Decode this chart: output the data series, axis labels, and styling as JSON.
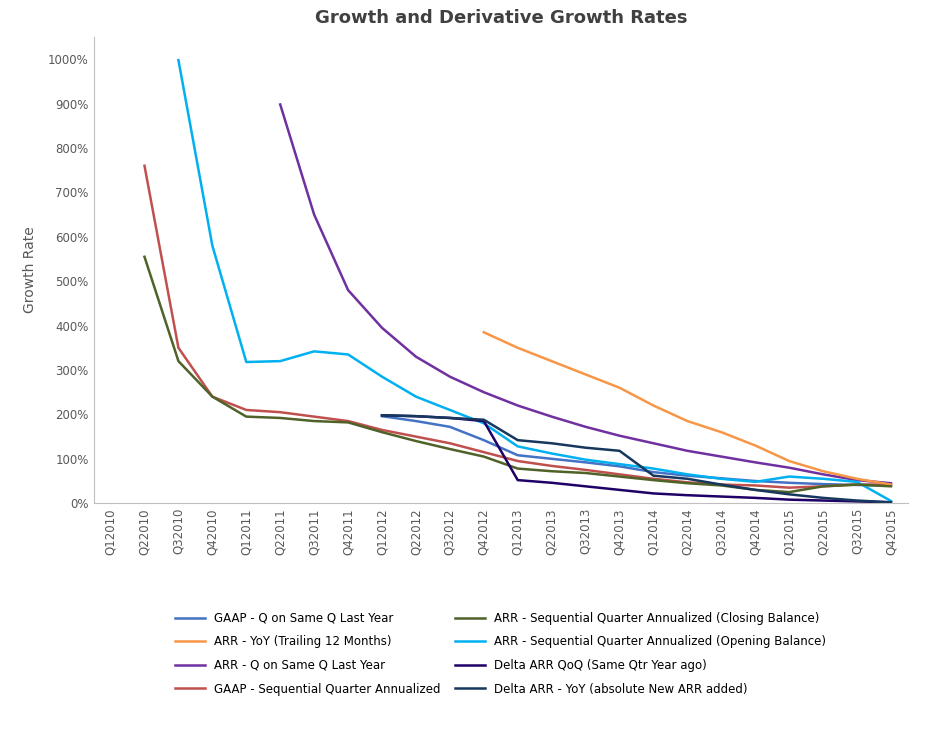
{
  "title": "Growth and Derivative Growth Rates",
  "ylabel": "Growth Rate",
  "x_labels": [
    "Q12010",
    "Q22010",
    "Q32010",
    "Q42010",
    "Q12011",
    "Q22011",
    "Q32011",
    "Q42011",
    "Q12012",
    "Q22012",
    "Q32012",
    "Q42012",
    "Q12013",
    "Q22013",
    "Q32013",
    "Q42013",
    "Q12014",
    "Q22014",
    "Q32014",
    "Q42014",
    "Q12015",
    "Q22015",
    "Q32015",
    "Q42015"
  ],
  "series": [
    {
      "name": "GAAP - Q on Same Q Last Year",
      "color": "#4472C4",
      "values": [
        null,
        null,
        null,
        null,
        null,
        null,
        null,
        null,
        1.96,
        1.85,
        1.72,
        1.42,
        1.08,
        1.0,
        0.92,
        0.83,
        0.7,
        0.62,
        0.56,
        0.5,
        0.46,
        0.43,
        0.41,
        0.4
      ]
    },
    {
      "name": "GAAP - Sequential Quarter Annualized",
      "color": "#C0504D",
      "values": [
        null,
        7.6,
        3.5,
        2.4,
        2.1,
        2.05,
        1.95,
        1.85,
        1.65,
        1.5,
        1.35,
        1.15,
        0.95,
        0.84,
        0.75,
        0.65,
        0.55,
        0.47,
        0.42,
        0.4,
        0.35,
        0.38,
        0.42,
        0.42
      ]
    },
    {
      "name": "ARR - Q on Same Q Last Year",
      "color": "#7030A0",
      "values": [
        null,
        null,
        null,
        null,
        null,
        8.98,
        6.5,
        4.8,
        3.95,
        3.3,
        2.85,
        2.5,
        2.2,
        1.95,
        1.72,
        1.52,
        1.35,
        1.18,
        1.05,
        0.92,
        0.8,
        0.65,
        0.52,
        0.45
      ]
    },
    {
      "name": "ARR - Sequential Quarter Annualized (Opening Balance)",
      "color": "#00B0F0",
      "values": [
        null,
        null,
        9.98,
        5.8,
        3.18,
        3.2,
        3.42,
        3.35,
        2.85,
        2.4,
        2.1,
        1.8,
        1.28,
        1.12,
        0.98,
        0.88,
        0.78,
        0.65,
        0.55,
        0.48,
        0.6,
        0.55,
        0.48,
        0.05
      ]
    },
    {
      "name": "ARR - YoY (Trailing 12 Months)",
      "color": "#F79646",
      "values": [
        null,
        null,
        null,
        null,
        null,
        null,
        null,
        null,
        null,
        null,
        null,
        3.85,
        3.5,
        3.2,
        2.9,
        2.6,
        2.2,
        1.85,
        1.6,
        1.3,
        0.95,
        0.72,
        0.55,
        0.42
      ]
    },
    {
      "name": "ARR - Sequential Quarter Annualized (Closing Balance)",
      "color": "#4F6228",
      "values": [
        null,
        5.55,
        3.2,
        2.4,
        1.95,
        1.92,
        1.85,
        1.82,
        1.6,
        1.4,
        1.22,
        1.05,
        0.78,
        0.72,
        0.68,
        0.6,
        0.52,
        0.45,
        0.4,
        0.3,
        0.25,
        0.38,
        0.42,
        0.38
      ]
    },
    {
      "name": "Delta ARR QoQ (Same Qtr Year ago)",
      "color": "#1F0066",
      "values": [
        null,
        null,
        null,
        null,
        null,
        null,
        null,
        null,
        1.98,
        1.96,
        1.92,
        1.85,
        0.52,
        0.46,
        0.38,
        0.3,
        0.22,
        0.18,
        0.15,
        0.12,
        0.08,
        0.06,
        0.04,
        0.02
      ]
    },
    {
      "name": "Delta ARR - YoY (absolute New ARR added)",
      "color": "#17375E",
      "values": [
        null,
        null,
        null,
        null,
        null,
        null,
        null,
        null,
        1.98,
        1.96,
        1.92,
        1.88,
        1.42,
        1.35,
        1.25,
        1.18,
        0.62,
        0.55,
        0.42,
        0.3,
        0.2,
        0.12,
        0.06,
        0.02
      ]
    }
  ],
  "ylim": [
    0.0,
    10.5
  ],
  "yticks": [
    0,
    1,
    2,
    3,
    4,
    5,
    6,
    7,
    8,
    9,
    10
  ],
  "ytick_labels": [
    "0%",
    "100%",
    "200%",
    "300%",
    "400%",
    "500%",
    "600%",
    "700%",
    "800%",
    "900%",
    "1000%"
  ],
  "background_color": "#FFFFFF",
  "title_fontsize": 13,
  "axis_label_fontsize": 10,
  "tick_fontsize": 8.5,
  "legend_fontsize": 8.5,
  "legend_order": [
    0,
    4,
    2,
    1,
    5,
    3,
    6,
    7
  ]
}
